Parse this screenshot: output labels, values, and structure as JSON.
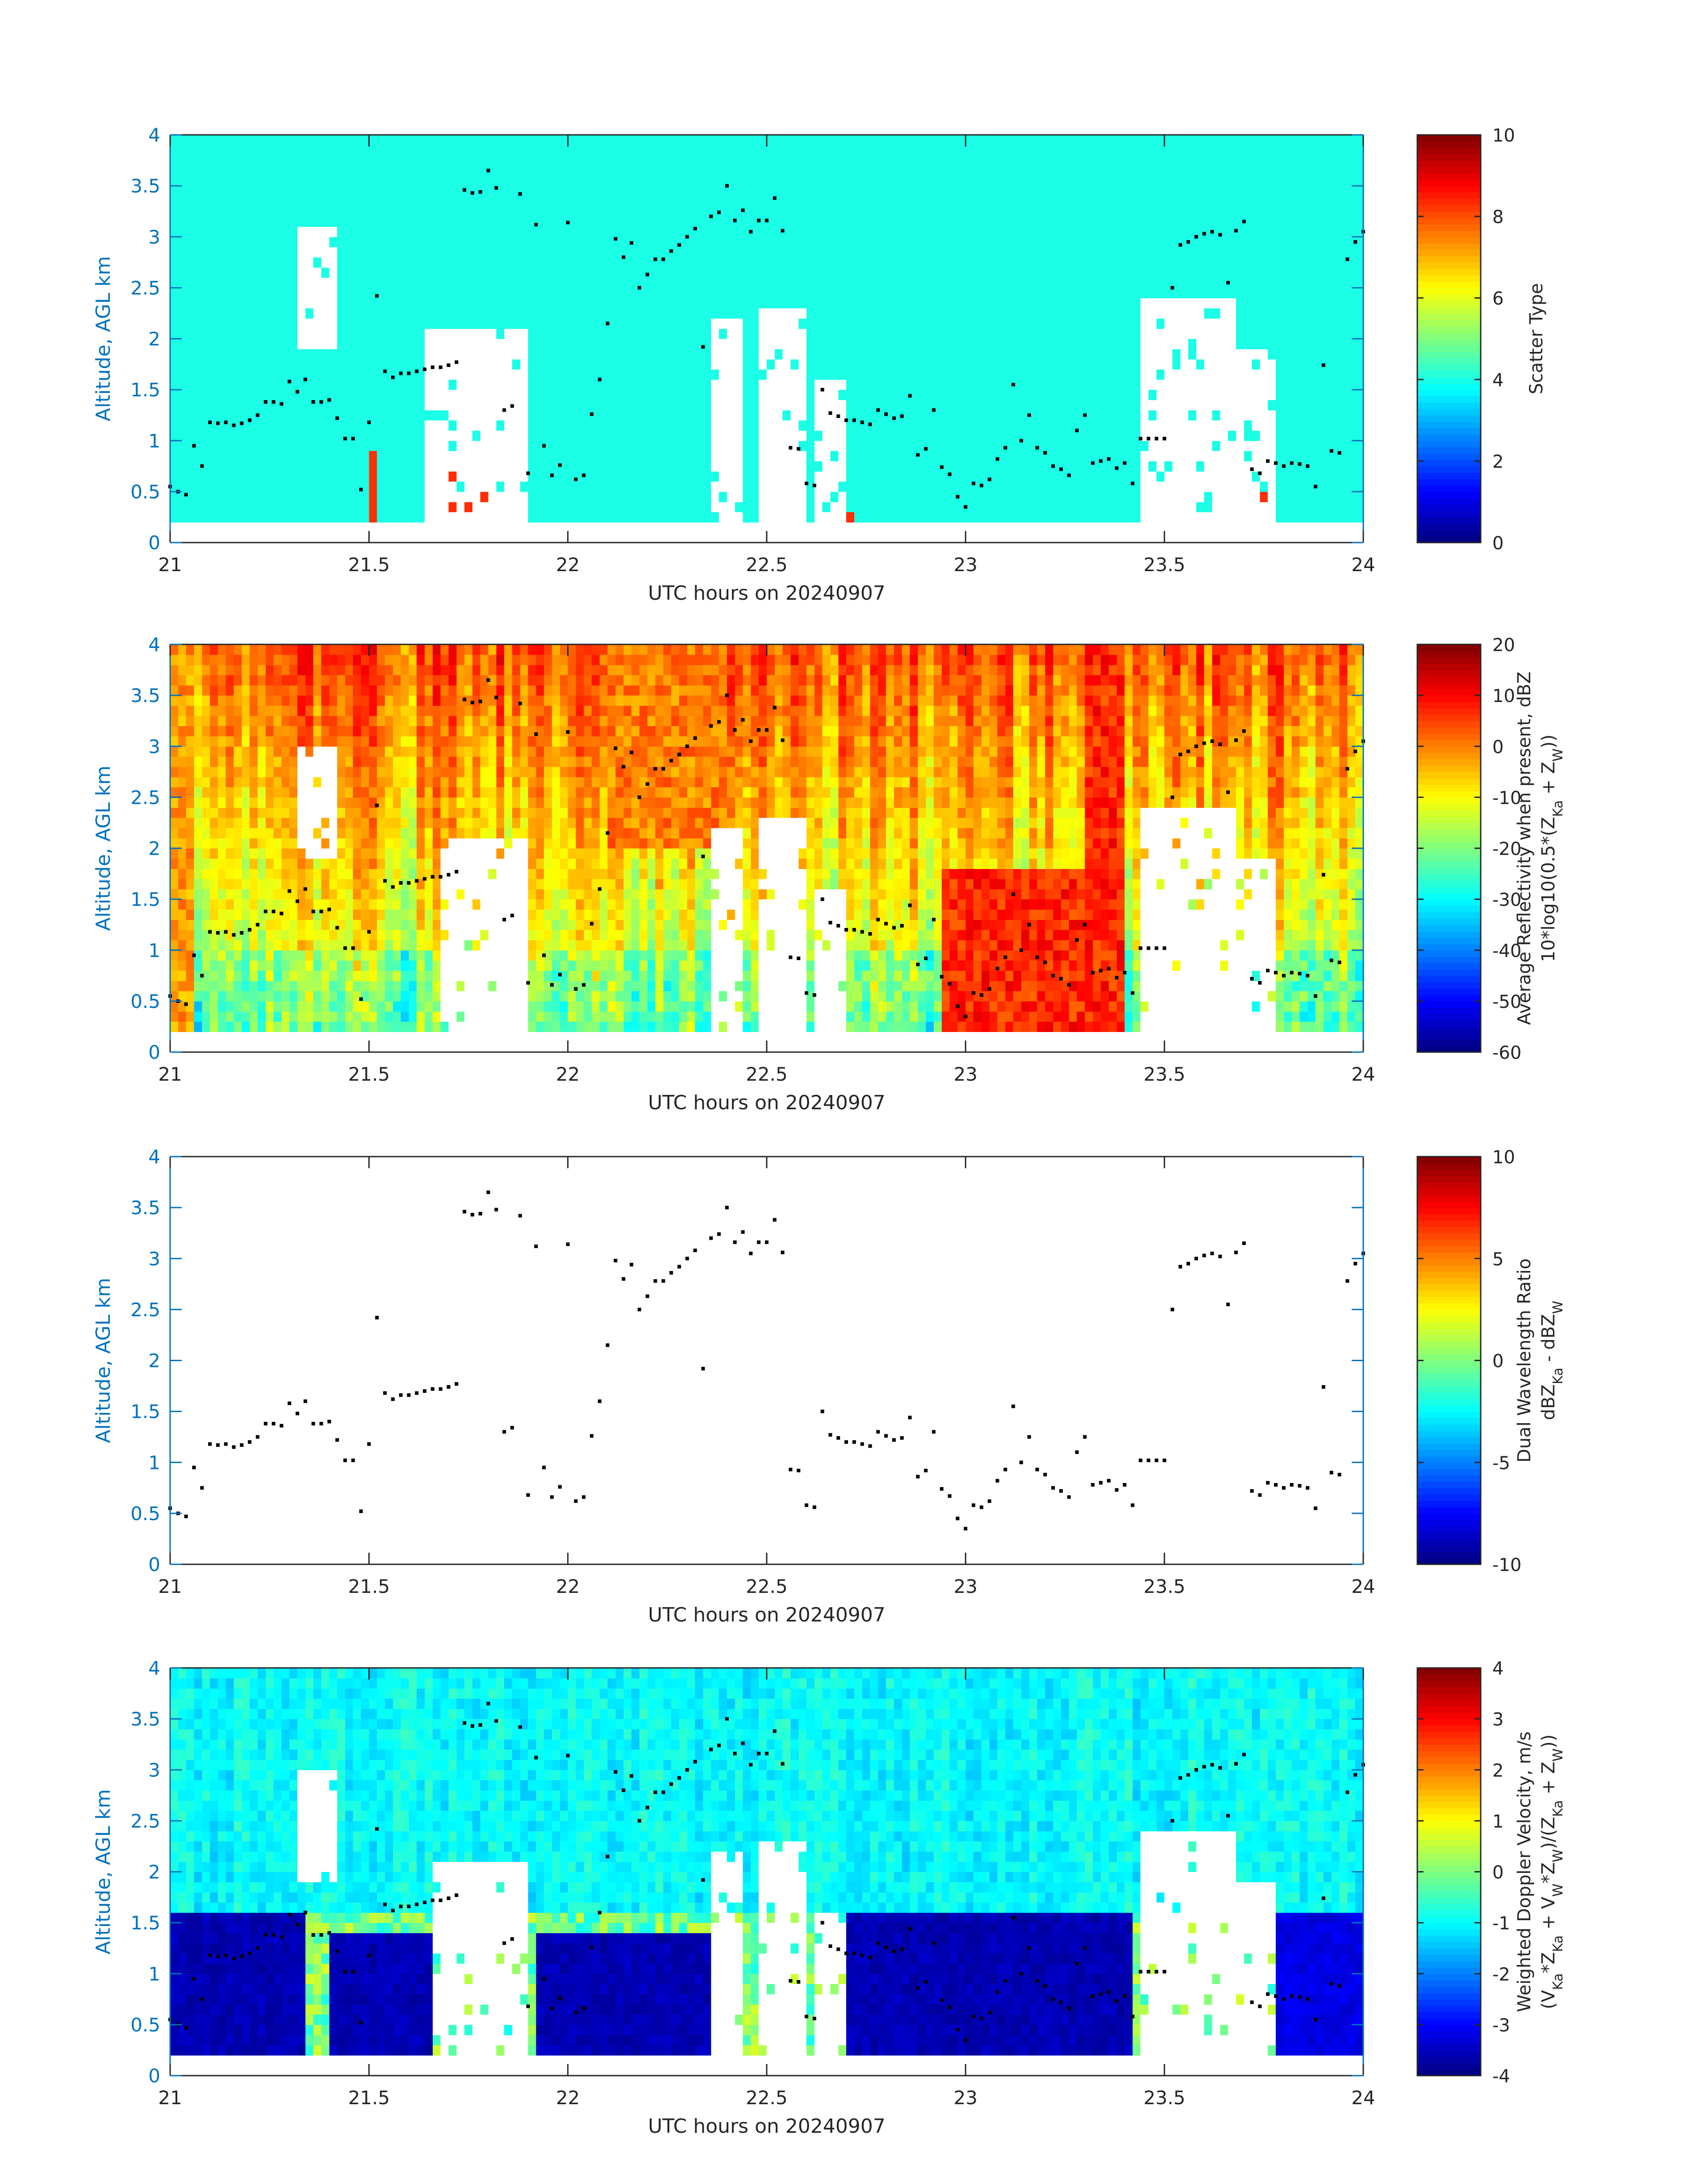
{
  "figure": {
    "xlabel": "UTC hours on 20240907",
    "ylabel": "Altitude, AGL km",
    "xlim": [
      21,
      24
    ],
    "ylim": [
      0,
      4
    ],
    "xticks": [
      "21",
      "21.5",
      "22",
      "22.5",
      "23",
      "23.5",
      "24"
    ],
    "yticks": [
      "0",
      "0.5",
      "1",
      "1.5",
      "2",
      "2.5",
      "3",
      "3.5",
      "4"
    ],
    "axis_color": "#0072BD",
    "tick_label_color": "#262626"
  },
  "chart_data": [
    {
      "type": "heatmap",
      "title": "",
      "xlabel": "UTC hours on 20240907",
      "ylabel": "Altitude, AGL km",
      "xlim": [
        21,
        24
      ],
      "ylim": [
        0,
        4
      ],
      "colorbar": {
        "label_lines": [
          "Scatter Type"
        ],
        "range": [
          0,
          10
        ],
        "ticks": [
          "0",
          "2",
          "4",
          "6",
          "8",
          "10"
        ]
      },
      "background_value": 4,
      "white_regions": [
        [
          21.32,
          21.42,
          1.9,
          3.1
        ],
        [
          21.65,
          21.9,
          0.2,
          2.1
        ],
        [
          22.37,
          22.44,
          0.2,
          2.2
        ],
        [
          22.48,
          22.6,
          0.2,
          2.3
        ],
        [
          22.62,
          22.7,
          0.2,
          1.6
        ],
        [
          23.45,
          23.67,
          0.2,
          2.4
        ],
        [
          23.68,
          23.78,
          0.2,
          1.9
        ]
      ],
      "red_regions": [
        [
          21.5,
          21.52,
          0.2,
          0.85
        ],
        [
          21.67,
          21.71,
          0.2,
          0.7
        ],
        [
          21.74,
          21.75,
          0.2,
          1.85
        ],
        [
          21.76,
          21.8,
          0.2,
          0.5
        ],
        [
          22.69,
          22.71,
          0.2,
          0.3
        ],
        [
          23.67,
          23.72,
          0.2,
          0.6
        ],
        [
          23.73,
          23.75,
          0.2,
          0.5
        ]
      ]
    },
    {
      "type": "heatmap",
      "title": "",
      "xlabel": "UTC hours on 20240907",
      "ylabel": "Altitude, AGL km",
      "xlim": [
        21,
        24
      ],
      "ylim": [
        0,
        4
      ],
      "colorbar": {
        "label_lines": [
          "Average Reflectivity when present, dBZ",
          "10*log10(0.5*(Z_Ka + Z_W))"
        ],
        "range": [
          -60,
          20
        ],
        "ticks": [
          "-60",
          "-50",
          "-40",
          "-30",
          "-20",
          "-10",
          "0",
          "10",
          "20"
        ]
      },
      "high_regions": [
        [
          22.1,
          22.4,
          2.0,
          4.0,
          5
        ],
        [
          22.95,
          23.4,
          0.2,
          1.8,
          12
        ],
        [
          23.3,
          23.4,
          0.2,
          4.0,
          12
        ],
        [
          21.0,
          21.05,
          0.2,
          4.0,
          3
        ]
      ],
      "white_regions": [
        [
          21.33,
          21.41,
          1.9,
          3.0
        ],
        [
          21.68,
          21.9,
          0.2,
          2.1
        ],
        [
          22.37,
          22.44,
          0.2,
          2.2
        ],
        [
          22.48,
          22.6,
          0.2,
          2.3
        ],
        [
          22.62,
          22.7,
          0.2,
          1.6
        ],
        [
          23.45,
          23.67,
          0.2,
          2.4
        ],
        [
          23.68,
          23.78,
          0.2,
          1.9
        ]
      ]
    },
    {
      "type": "scatter",
      "title": "",
      "xlabel": "UTC hours on 20240907",
      "ylabel": "Altitude, AGL km",
      "xlim": [
        21,
        24
      ],
      "ylim": [
        0,
        4
      ],
      "colorbar": {
        "label_lines": [
          "Dual Wavelength Ratio",
          "dBZ_Ka - dBZ_W"
        ],
        "range": [
          -10,
          10
        ],
        "ticks": [
          "-10",
          "-5",
          "0",
          "5",
          "10"
        ]
      }
    },
    {
      "type": "heatmap",
      "title": "",
      "xlabel": "UTC hours on 20240907",
      "ylabel": "Altitude, AGL km",
      "xlim": [
        21,
        24
      ],
      "ylim": [
        0,
        4
      ],
      "colorbar": {
        "label_lines": [
          "Weighted Doppler Velocity, m/s",
          "(V_Ka*Z_Ka + V_W*Z_W)/(Z_Ka + Z_W))"
        ],
        "range": [
          -4,
          4
        ],
        "ticks": [
          "-4",
          "-3",
          "-2",
          "-1",
          "0",
          "1",
          "2",
          "3",
          "4"
        ]
      },
      "fast_fall_regions": [
        [
          21.0,
          21.33,
          0.2,
          1.55,
          -3.8
        ],
        [
          21.4,
          21.65,
          0.2,
          1.35,
          -3.8
        ],
        [
          21.92,
          22.36,
          0.2,
          1.4,
          -3.8
        ],
        [
          22.71,
          23.42,
          0.2,
          1.55,
          -3.8
        ],
        [
          23.78,
          24.0,
          0.2,
          1.55,
          -3.4
        ]
      ],
      "white_regions": [
        [
          21.33,
          21.41,
          1.9,
          3.0
        ],
        [
          21.67,
          21.9,
          0.2,
          2.1
        ],
        [
          22.37,
          22.44,
          0.2,
          2.2
        ],
        [
          22.48,
          22.6,
          0.2,
          2.3
        ],
        [
          22.62,
          22.7,
          0.2,
          1.6
        ],
        [
          23.45,
          23.67,
          0.2,
          2.4
        ],
        [
          23.68,
          23.78,
          0.2,
          1.9
        ]
      ]
    }
  ],
  "cloud_base_points": {
    "x": [
      21.0,
      21.02,
      21.04,
      21.06,
      21.08,
      21.1,
      21.12,
      21.14,
      21.16,
      21.18,
      21.2,
      21.22,
      21.24,
      21.26,
      21.28,
      21.3,
      21.32,
      21.34,
      21.36,
      21.38,
      21.4,
      21.42,
      21.44,
      21.46,
      21.48,
      21.5,
      21.52,
      21.54,
      21.56,
      21.58,
      21.6,
      21.62,
      21.64,
      21.66,
      21.68,
      21.7,
      21.72,
      21.74,
      21.76,
      21.78,
      21.8,
      21.82,
      21.84,
      21.86,
      21.88,
      21.9,
      21.92,
      21.94,
      21.96,
      21.98,
      22.0,
      22.02,
      22.04,
      22.06,
      22.08,
      22.1,
      22.12,
      22.14,
      22.16,
      22.18,
      22.2,
      22.22,
      22.24,
      22.26,
      22.28,
      22.3,
      22.32,
      22.34,
      22.36,
      22.38,
      22.4,
      22.42,
      22.44,
      22.46,
      22.48,
      22.5,
      22.52,
      22.54,
      22.56,
      22.58,
      22.6,
      22.62,
      22.64,
      22.66,
      22.68,
      22.7,
      22.72,
      22.74,
      22.76,
      22.78,
      22.8,
      22.82,
      22.84,
      22.86,
      22.88,
      22.9,
      22.92,
      22.94,
      22.96,
      22.98,
      23.0,
      23.02,
      23.04,
      23.06,
      23.08,
      23.1,
      23.12,
      23.14,
      23.16,
      23.18,
      23.2,
      23.22,
      23.24,
      23.26,
      23.28,
      23.3,
      23.32,
      23.34,
      23.36,
      23.38,
      23.4,
      23.42,
      23.44,
      23.46,
      23.48,
      23.5,
      23.52,
      23.54,
      23.56,
      23.58,
      23.6,
      23.62,
      23.64,
      23.66,
      23.68,
      23.7,
      23.72,
      23.74,
      23.76,
      23.78,
      23.8,
      23.82,
      23.84,
      23.86,
      23.88,
      23.9,
      23.92,
      23.94,
      23.96,
      23.98,
      24.0
    ],
    "y": [
      0.55,
      0.5,
      0.47,
      0.95,
      0.75,
      1.18,
      1.17,
      1.18,
      1.15,
      1.17,
      1.2,
      1.25,
      1.38,
      1.38,
      1.36,
      1.58,
      1.48,
      1.6,
      1.38,
      1.38,
      1.4,
      1.22,
      1.02,
      1.02,
      0.52,
      1.18,
      2.42,
      1.68,
      1.62,
      1.66,
      1.66,
      1.68,
      1.7,
      1.72,
      1.72,
      1.74,
      1.77,
      3.46,
      3.43,
      3.44,
      3.65,
      3.48,
      1.3,
      1.34,
      3.42,
      0.68,
      3.12,
      0.95,
      0.66,
      0.76,
      3.14,
      0.62,
      0.66,
      1.26,
      1.6,
      2.15,
      2.98,
      2.8,
      2.94,
      2.5,
      2.63,
      2.78,
      2.78,
      2.86,
      2.92,
      3.0,
      3.08,
      1.92,
      3.2,
      3.24,
      3.5,
      3.16,
      3.26,
      3.05,
      3.16,
      3.16,
      3.38,
      3.06,
      0.93,
      0.92,
      0.58,
      0.56,
      1.5,
      1.27,
      1.24,
      1.2,
      1.2,
      1.18,
      1.16,
      1.3,
      1.26,
      1.22,
      1.24,
      1.44,
      0.86,
      0.92,
      1.3,
      0.74,
      0.67,
      0.45,
      0.35,
      0.58,
      0.56,
      0.62,
      0.82,
      0.93,
      1.55,
      1.0,
      1.25,
      0.93,
      0.88,
      0.75,
      0.72,
      0.66,
      1.1,
      1.25,
      0.78,
      0.8,
      0.82,
      0.73,
      0.78,
      0.58,
      1.02,
      1.02,
      1.02,
      1.02,
      2.5,
      2.92,
      2.95,
      3.0,
      3.03,
      3.05,
      3.02,
      2.55,
      3.06,
      3.15,
      0.72,
      0.68,
      0.8,
      0.78,
      0.75,
      0.78,
      0.77,
      0.75,
      0.55,
      1.74,
      0.9,
      0.88,
      2.78,
      2.95,
      3.05
    ]
  }
}
